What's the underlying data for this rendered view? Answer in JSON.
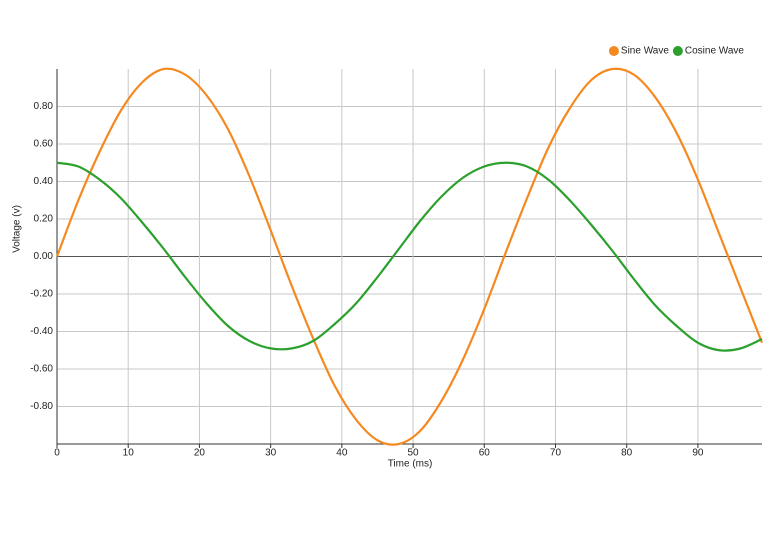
{
  "chart_data": {
    "type": "line",
    "x_label": "Time (ms)",
    "y_label": "Voltage (v)",
    "x": [
      0,
      3,
      6,
      9,
      12,
      15,
      18,
      21,
      24,
      27,
      30,
      33,
      36,
      39,
      42,
      45,
      48,
      51,
      54,
      57,
      60,
      63,
      66,
      69,
      72,
      75,
      78,
      81,
      84,
      87,
      90,
      93,
      96,
      99
    ],
    "series": [
      {
        "name": "Sine Wave",
        "color": "#f5891f",
        "values": [
          0,
          0.3,
          0.56,
          0.78,
          0.93,
          1.0,
          0.97,
          0.86,
          0.68,
          0.43,
          0.14,
          -0.16,
          -0.44,
          -0.69,
          -0.87,
          -0.98,
          -1.0,
          -0.93,
          -0.77,
          -0.55,
          -0.28,
          0.02,
          0.31,
          0.58,
          0.79,
          0.94,
          1.0,
          0.97,
          0.85,
          0.66,
          0.41,
          0.12,
          -0.17,
          -0.46
        ]
      },
      {
        "name": "Cosine Wave",
        "color": "#2ca02c",
        "values": [
          0.5,
          0.48,
          0.41,
          0.31,
          0.18,
          0.04,
          -0.11,
          -0.25,
          -0.37,
          -0.45,
          -0.49,
          -0.49,
          -0.45,
          -0.36,
          -0.25,
          -0.11,
          0.04,
          0.19,
          0.32,
          0.42,
          0.48,
          0.5,
          0.48,
          0.41,
          0.3,
          0.17,
          0.03,
          -0.12,
          -0.26,
          -0.37,
          -0.46,
          -0.5,
          -0.49,
          -0.44
        ]
      }
    ],
    "xlim": [
      0,
      99
    ],
    "xticks": [
      0,
      10,
      20,
      30,
      40,
      50,
      60,
      70,
      80,
      90
    ],
    "ylim": [
      -1,
      1
    ],
    "yticks": [
      {
        "value": -0.8,
        "label": "-0.80"
      },
      {
        "value": -0.6,
        "label": "-0.60"
      },
      {
        "value": -0.4,
        "label": "-0.40"
      },
      {
        "value": -0.2,
        "label": "-0.20"
      },
      {
        "value": 0,
        "label": "0.00"
      },
      {
        "value": 0.2,
        "label": "0.20"
      },
      {
        "value": 0.4,
        "label": "0.40"
      },
      {
        "value": 0.6,
        "label": "0.60"
      },
      {
        "value": 0.8,
        "label": "0.80"
      }
    ],
    "grid": true,
    "legend": "top-right"
  }
}
